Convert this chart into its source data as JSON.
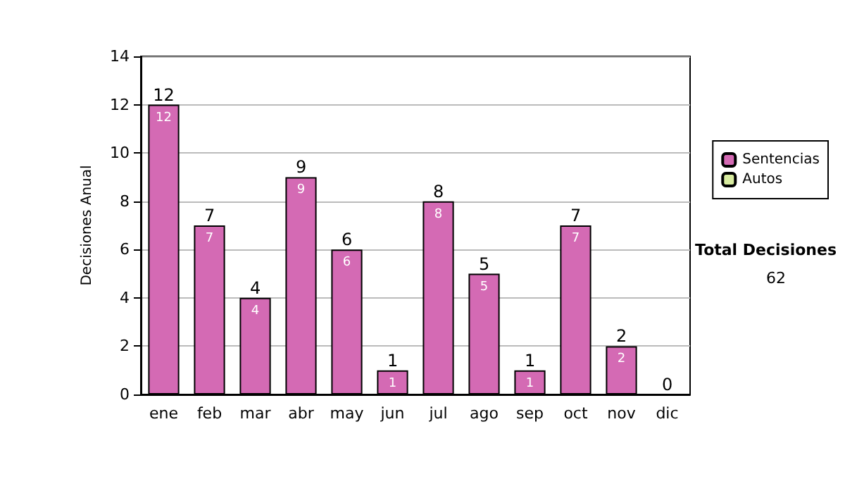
{
  "chart_data": {
    "type": "bar",
    "ylabel": "Decisiones Anual",
    "categories": [
      "ene",
      "feb",
      "mar",
      "abr",
      "may",
      "jun",
      "jul",
      "ago",
      "sep",
      "oct",
      "nov",
      "dic"
    ],
    "stacked": true,
    "series": [
      {
        "name": "Sentencias",
        "color": "#d46ab4",
        "values": [
          12,
          7,
          4,
          9,
          6,
          1,
          8,
          5,
          1,
          7,
          2,
          0
        ],
        "value_labels": [
          "12",
          "7",
          "4",
          "9",
          "6",
          "1",
          "8",
          "5",
          "1",
          "7",
          "2",
          null
        ]
      },
      {
        "name": "Autos",
        "color": "#d8eca0",
        "values": [
          0,
          0,
          0,
          0,
          0,
          0,
          0,
          0,
          0,
          0,
          0,
          0
        ]
      }
    ],
    "totals": [
      "12",
      "7",
      "4",
      "9",
      "6",
      "1",
      "8",
      "5",
      "1",
      "7",
      "2",
      "0"
    ],
    "ylim": [
      0,
      14
    ],
    "yticks": [
      0,
      2,
      4,
      6,
      8,
      10,
      12,
      14
    ],
    "grid": "y",
    "legend": "right",
    "annotations": [
      "Total Decisiones",
      "62"
    ]
  }
}
